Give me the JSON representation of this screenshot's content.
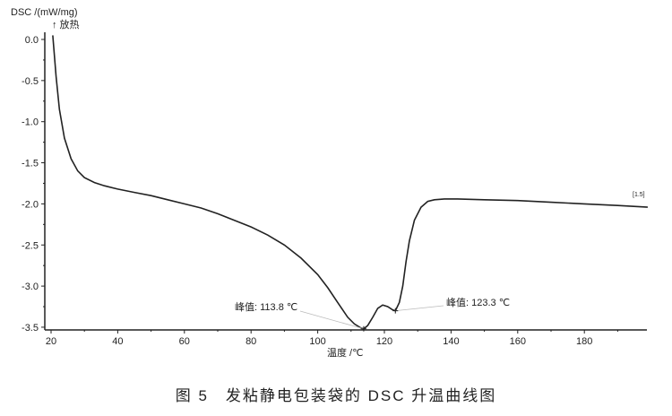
{
  "chart_data": {
    "type": "line",
    "ylabel": "DSC /(mW/mg)",
    "ylabel_note": "↑ 放热",
    "xlabel": "温度 /℃",
    "caption": "图 5　发粘静电包装袋的 DSC 升温曲线图",
    "xlim": [
      20,
      200
    ],
    "ylim": [
      -3.55,
      0.1
    ],
    "xticks": [
      20,
      40,
      60,
      80,
      100,
      120,
      140,
      160,
      180
    ],
    "xtick_labels": [
      "20",
      "40",
      "60",
      "80",
      "100",
      "120",
      "140",
      "160",
      "180"
    ],
    "yticks": [
      0.0,
      -0.5,
      -1.0,
      -1.5,
      -2.0,
      -2.5,
      -3.0,
      -3.5
    ],
    "ytick_labels": [
      "0.0",
      "-0.5",
      "-1.0",
      "-1.5",
      "-2.0",
      "-2.5",
      "-3.0",
      "-3.5"
    ],
    "grid": false,
    "series": [
      {
        "color": "#222222",
        "x": [
          20.5,
          21.5,
          22.5,
          24,
          26,
          28,
          30,
          33,
          36,
          40,
          45,
          50,
          55,
          60,
          65,
          70,
          75,
          80,
          85,
          90,
          95,
          100,
          103,
          106,
          109,
          111,
          113,
          113.8,
          115,
          116.5,
          118,
          119.5,
          121,
          122.5,
          123.3,
          124.5,
          125.5,
          126.5,
          127.5,
          129,
          131,
          133,
          135,
          138,
          142,
          150,
          160,
          170,
          180,
          190,
          199
        ],
        "y": [
          0.05,
          -0.45,
          -0.85,
          -1.2,
          -1.45,
          -1.6,
          -1.68,
          -1.74,
          -1.78,
          -1.82,
          -1.86,
          -1.9,
          -1.95,
          -2.0,
          -2.05,
          -2.12,
          -2.2,
          -2.28,
          -2.38,
          -2.5,
          -2.66,
          -2.86,
          -3.02,
          -3.2,
          -3.38,
          -3.46,
          -3.51,
          -3.52,
          -3.48,
          -3.38,
          -3.27,
          -3.23,
          -3.25,
          -3.29,
          -3.3,
          -3.2,
          -3.0,
          -2.7,
          -2.45,
          -2.2,
          -2.04,
          -1.97,
          -1.95,
          -1.94,
          -1.94,
          -1.95,
          -1.96,
          -1.98,
          -2.0,
          -2.02,
          -2.04
        ]
      }
    ],
    "annotations": [
      {
        "text": "峰值: 113.8 ℃",
        "x": 113.8,
        "y": -3.52
      },
      {
        "text": "峰值: 123.3 ℃",
        "x": 123.3,
        "y": -3.3
      },
      {
        "text": "[1.5]"
      }
    ]
  }
}
